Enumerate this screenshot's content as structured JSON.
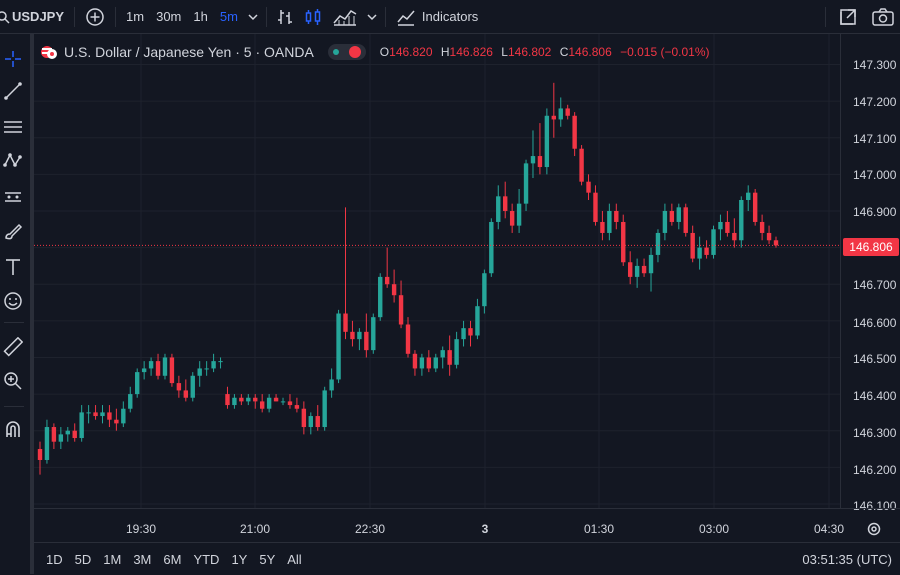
{
  "toolbar": {
    "symbol": "USDJPY",
    "intervals": [
      "1m",
      "30m",
      "1h",
      "5m"
    ],
    "active_interval": "5m",
    "indicators_label": "Indicators"
  },
  "legend": {
    "title": "U.S. Dollar / Japanese Yen · 5 · OANDA",
    "o_label": "O",
    "o_value": "146.820",
    "h_label": "H",
    "h_value": "146.826",
    "l_label": "L",
    "l_value": "146.802",
    "c_label": "C",
    "c_value": "146.806",
    "change": "−0.015 (−0.01%)"
  },
  "price_axis": {
    "labels": [
      "147.300",
      "147.200",
      "147.100",
      "147.000",
      "146.900",
      "146.700",
      "146.600",
      "146.500",
      "146.400",
      "146.300",
      "146.200",
      "146.100"
    ],
    "current_price": "146.806"
  },
  "time_axis": {
    "labels": [
      "19:30",
      "21:00",
      "22:30",
      "3",
      "01:30",
      "03:00",
      "04:30"
    ]
  },
  "bottom": {
    "ranges": [
      "1D",
      "5D",
      "1M",
      "3M",
      "6M",
      "YTD",
      "1Y",
      "5Y",
      "All"
    ],
    "clock": "03:51:35 (UTC)"
  },
  "colors": {
    "up": "#26a69a",
    "down": "#f23645",
    "background": "#131722",
    "accent": "#2962ff"
  },
  "chart_data": {
    "type": "candlestick",
    "symbol": "USDJPY",
    "interval": "5",
    "ylim": [
      146.05,
      147.33
    ],
    "x_time_labels": [
      "19:30",
      "21:00",
      "22:30",
      "3",
      "01:30",
      "03:00",
      "04:30"
    ],
    "candles": [
      [
        146.25,
        146.27,
        146.18,
        146.22
      ],
      [
        146.22,
        146.33,
        146.21,
        146.31
      ],
      [
        146.31,
        146.32,
        146.25,
        146.27
      ],
      [
        146.27,
        146.31,
        146.25,
        146.29
      ],
      [
        146.29,
        146.31,
        146.27,
        146.3
      ],
      [
        146.3,
        146.32,
        146.27,
        146.28
      ],
      [
        146.28,
        146.37,
        146.27,
        146.35
      ],
      [
        146.35,
        146.37,
        146.32,
        146.35
      ],
      [
        146.35,
        146.37,
        146.33,
        146.34
      ],
      [
        146.34,
        146.37,
        146.32,
        146.35
      ],
      [
        146.35,
        146.37,
        146.31,
        146.33
      ],
      [
        146.33,
        146.36,
        146.3,
        146.32
      ],
      [
        146.32,
        146.38,
        146.31,
        146.36
      ],
      [
        146.36,
        146.42,
        146.35,
        146.4
      ],
      [
        146.4,
        146.47,
        146.39,
        146.46
      ],
      [
        146.46,
        146.49,
        146.44,
        146.47
      ],
      [
        146.47,
        146.5,
        146.45,
        146.49
      ],
      [
        146.49,
        146.51,
        146.44,
        146.45
      ],
      [
        146.45,
        146.51,
        146.44,
        146.5
      ],
      [
        146.5,
        146.51,
        146.42,
        146.43
      ],
      [
        146.43,
        146.45,
        146.39,
        146.41
      ],
      [
        146.41,
        146.44,
        146.38,
        146.39
      ],
      [
        146.39,
        146.46,
        146.38,
        146.45
      ],
      [
        146.45,
        146.49,
        146.42,
        146.47
      ],
      [
        146.47,
        146.49,
        146.45,
        146.47
      ],
      [
        146.47,
        146.51,
        146.46,
        146.49
      ],
      [
        146.49,
        146.5,
        146.47,
        146.49
      ],
      [
        146.4,
        146.42,
        146.36,
        146.37
      ],
      [
        146.37,
        146.4,
        146.36,
        146.39
      ],
      [
        146.39,
        146.4,
        146.37,
        146.38
      ],
      [
        146.38,
        146.4,
        146.37,
        146.39
      ],
      [
        146.39,
        146.4,
        146.36,
        146.38
      ],
      [
        146.38,
        146.4,
        146.35,
        146.36
      ],
      [
        146.36,
        146.4,
        146.35,
        146.39
      ],
      [
        146.39,
        146.4,
        146.38,
        146.38
      ],
      [
        146.38,
        146.39,
        146.37,
        146.38
      ],
      [
        146.38,
        146.4,
        146.36,
        146.37
      ],
      [
        146.37,
        146.39,
        146.35,
        146.36
      ],
      [
        146.36,
        146.38,
        146.29,
        146.31
      ],
      [
        146.31,
        146.35,
        146.29,
        146.34
      ],
      [
        146.34,
        146.37,
        146.3,
        146.31
      ],
      [
        146.31,
        146.42,
        146.3,
        146.41
      ],
      [
        146.41,
        146.47,
        146.39,
        146.44
      ],
      [
        146.44,
        146.63,
        146.43,
        146.62
      ],
      [
        146.62,
        146.91,
        146.55,
        146.57
      ],
      [
        146.57,
        146.6,
        146.53,
        146.55
      ],
      [
        146.55,
        146.58,
        146.52,
        146.57
      ],
      [
        146.57,
        146.62,
        146.5,
        146.52
      ],
      [
        146.52,
        146.62,
        146.51,
        146.61
      ],
      [
        146.61,
        146.73,
        146.6,
        146.72
      ],
      [
        146.72,
        146.8,
        146.69,
        146.7
      ],
      [
        146.7,
        146.74,
        146.65,
        146.67
      ],
      [
        146.67,
        146.71,
        146.58,
        146.59
      ],
      [
        146.59,
        146.61,
        146.5,
        146.51
      ],
      [
        146.51,
        146.52,
        146.45,
        146.47
      ],
      [
        146.47,
        146.51,
        146.45,
        146.5
      ],
      [
        146.5,
        146.52,
        146.46,
        146.47
      ],
      [
        146.47,
        146.51,
        146.46,
        146.5
      ],
      [
        146.5,
        146.53,
        146.47,
        146.52
      ],
      [
        146.52,
        146.56,
        146.45,
        146.48
      ],
      [
        146.48,
        146.57,
        146.47,
        146.55
      ],
      [
        146.55,
        146.6,
        146.53,
        146.58
      ],
      [
        146.58,
        146.6,
        146.53,
        146.56
      ],
      [
        146.56,
        146.66,
        146.55,
        146.64
      ],
      [
        146.64,
        146.74,
        146.62,
        146.73
      ],
      [
        146.73,
        146.88,
        146.72,
        146.87
      ],
      [
        146.87,
        146.97,
        146.85,
        146.94
      ],
      [
        146.94,
        146.98,
        146.88,
        146.9
      ],
      [
        146.9,
        146.92,
        146.84,
        146.86
      ],
      [
        146.86,
        146.96,
        146.84,
        146.92
      ],
      [
        146.92,
        147.04,
        146.9,
        147.03
      ],
      [
        147.03,
        147.12,
        146.99,
        147.05
      ],
      [
        147.05,
        147.14,
        147.0,
        147.02
      ],
      [
        147.02,
        147.18,
        147.0,
        147.16
      ],
      [
        147.16,
        147.25,
        147.1,
        147.15
      ],
      [
        147.15,
        147.21,
        147.13,
        147.18
      ],
      [
        147.18,
        147.19,
        147.15,
        147.16
      ],
      [
        147.16,
        147.17,
        147.05,
        147.07
      ],
      [
        147.07,
        147.08,
        146.97,
        146.98
      ],
      [
        146.98,
        147.0,
        146.93,
        146.95
      ],
      [
        146.95,
        146.97,
        146.86,
        146.87
      ],
      [
        146.87,
        146.9,
        146.82,
        146.84
      ],
      [
        146.84,
        146.92,
        146.82,
        146.9
      ],
      [
        146.9,
        146.92,
        146.85,
        146.87
      ],
      [
        146.87,
        146.89,
        146.75,
        146.76
      ],
      [
        146.76,
        146.79,
        146.7,
        146.72
      ],
      [
        146.72,
        146.77,
        146.69,
        146.75
      ],
      [
        146.75,
        146.77,
        146.72,
        146.73
      ],
      [
        146.73,
        146.8,
        146.68,
        146.78
      ],
      [
        146.78,
        146.85,
        146.76,
        146.84
      ],
      [
        146.84,
        146.92,
        146.82,
        146.9
      ],
      [
        146.9,
        146.92,
        146.86,
        146.87
      ],
      [
        146.87,
        146.92,
        146.85,
        146.91
      ],
      [
        146.91,
        146.92,
        146.83,
        146.84
      ],
      [
        146.84,
        146.86,
        146.76,
        146.77
      ],
      [
        146.77,
        146.83,
        146.74,
        146.8
      ],
      [
        146.8,
        146.82,
        146.77,
        146.78
      ],
      [
        146.78,
        146.86,
        146.77,
        146.85
      ],
      [
        146.85,
        146.89,
        146.82,
        146.87
      ],
      [
        146.87,
        146.9,
        146.83,
        146.84
      ],
      [
        146.84,
        146.88,
        146.8,
        146.82
      ],
      [
        146.82,
        146.94,
        146.8,
        146.93
      ],
      [
        146.93,
        146.97,
        146.9,
        146.95
      ],
      [
        146.95,
        146.96,
        146.86,
        146.87
      ],
      [
        146.87,
        146.89,
        146.82,
        146.84
      ],
      [
        146.84,
        146.86,
        146.81,
        146.82
      ],
      [
        146.82,
        146.83,
        146.8,
        146.806
      ]
    ]
  }
}
